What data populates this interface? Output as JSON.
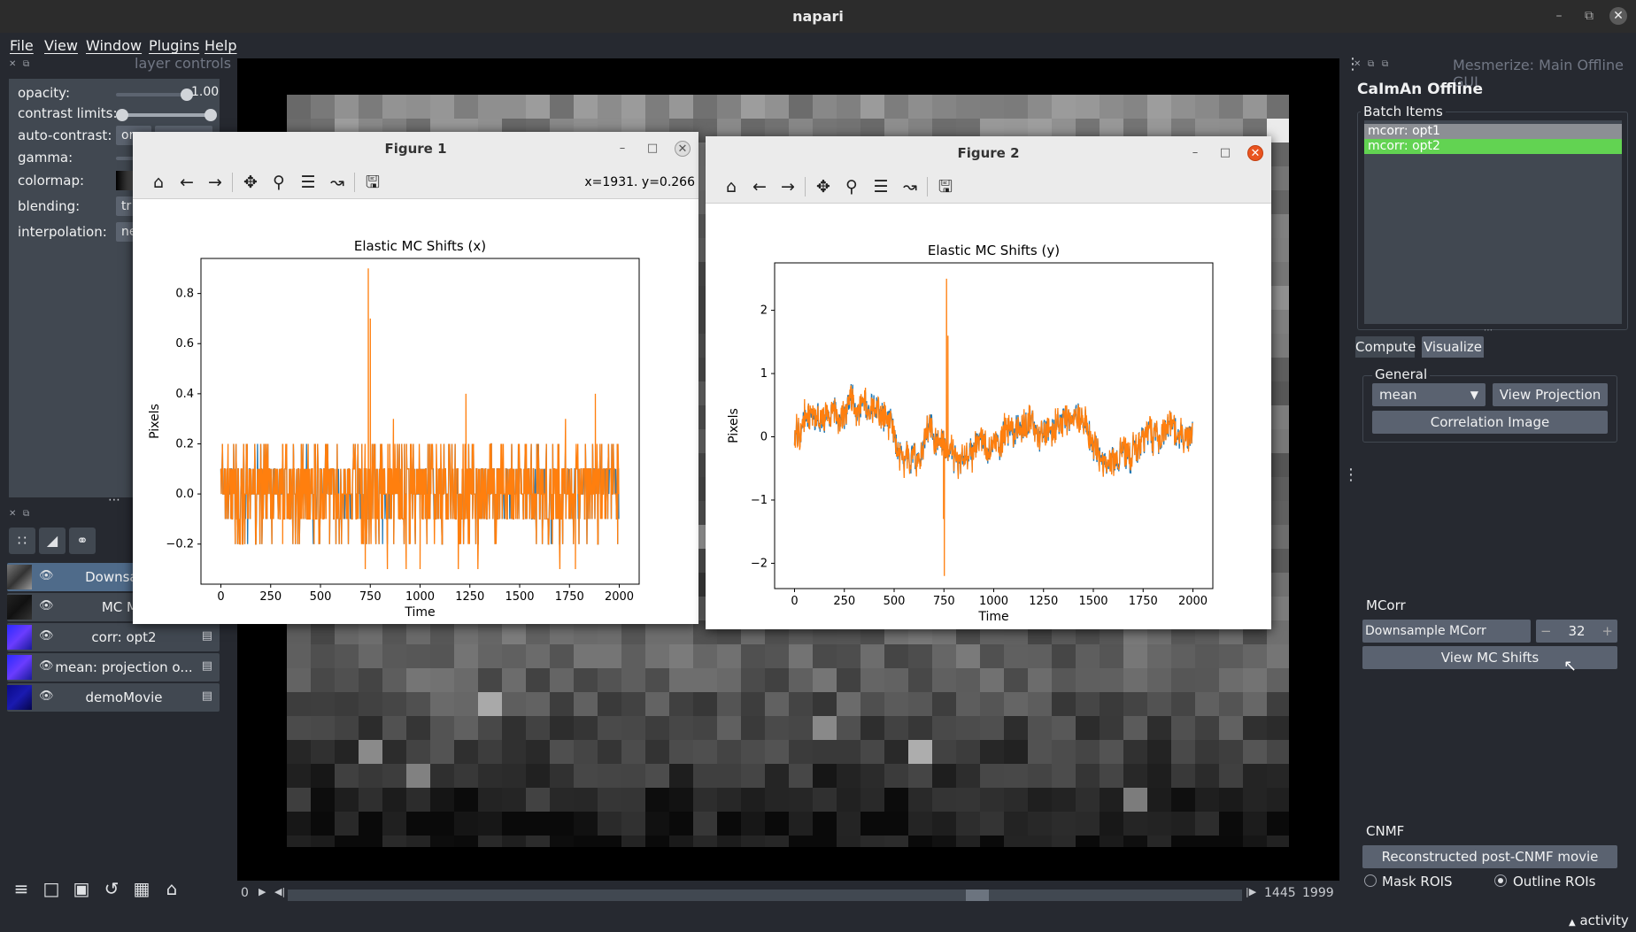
{
  "window": {
    "title": "napari"
  },
  "menu": [
    "File",
    "View",
    "Window",
    "Plugins",
    "Help"
  ],
  "layer_controls": {
    "title": "layer controls",
    "opacity_label": "opacity:",
    "opacity_value": "1.00",
    "opacity_fraction": 1.0,
    "contrast_label": "contrast limits:",
    "autocontrast_label": "auto-contrast:",
    "autocontrast_values": [
      "on",
      ""
    ],
    "gamma_label": "gamma:",
    "colormap_label": "colormap:",
    "blending_label": "blending:",
    "blending_value": "tr",
    "interpolation_label": "interpolation:",
    "interpolation_value": "ne"
  },
  "layers": [
    {
      "name": "Downsampl",
      "type": "",
      "selected": true,
      "thumb": "gray"
    },
    {
      "name": "MC Mo",
      "type": "",
      "selected": false,
      "thumb": "dark"
    },
    {
      "name": "corr: opt2",
      "type": "image",
      "selected": false,
      "thumb": "blue"
    },
    {
      "name": "mean: projection o...",
      "type": "image",
      "selected": false,
      "thumb": "blue"
    },
    {
      "name": "demoMovie",
      "type": "image",
      "selected": false,
      "thumb": "darkblue"
    }
  ],
  "dims": {
    "current": "0",
    "value": "1445",
    "max": "1999",
    "fraction": 0.7229
  },
  "right_panel": {
    "header": "Mesmerize: Main Offline GUI",
    "title": "CaImAn Offline",
    "batch_items_label": "Batch Items",
    "batch_items": [
      {
        "label": "mcorr: opt1",
        "color": "#8c8f94"
      },
      {
        "label": "mcorr: opt2",
        "color": "#62d352"
      }
    ],
    "tabs": [
      "Compute",
      "Visualize"
    ],
    "active_tab": "Visualize",
    "general_label": "General",
    "projection_select": "mean",
    "view_projection": "View Projection",
    "correlation_image": "Correlation Image",
    "mcorr_label": "MCorr",
    "downsample_label": "Downsample MCorr Movie:",
    "downsample_value": "32",
    "stepper_minus": "−",
    "stepper_plus": "+",
    "view_mc_shifts": "View MC Shifts",
    "cnmf_label": "CNMF",
    "reconstructed": "Reconstructed post-CNMF movie",
    "mask_rois": "Mask ROIS",
    "outline_rois": "Outline ROIs",
    "selected_roi_mode": "Outline ROIs"
  },
  "status": {
    "activity": "activity"
  },
  "figures": [
    {
      "window_title": "Figure 1",
      "coord_readout": "x=1931. y=0.266",
      "chart_data": {
        "type": "line",
        "title": "Elastic MC Shifts (x)",
        "xlabel": "Time",
        "ylabel": "Pixels",
        "xlim": [
          -100,
          2100
        ],
        "ylim": [
          -0.36,
          0.94
        ],
        "xticks": [
          0,
          250,
          500,
          750,
          1000,
          1250,
          1500,
          1750,
          2000
        ],
        "yticks": [
          -0.2,
          0.0,
          0.2,
          0.4,
          0.6,
          0.8
        ],
        "ytick_labels": [
          "−0.2",
          "0.0",
          "0.2",
          "0.4",
          "0.6",
          "0.8"
        ],
        "grid": false,
        "series": [
          {
            "color": "#1f77b4",
            "kind": "quantized",
            "spikes": []
          },
          {
            "color": "#ff7f0e",
            "kind": "quantized",
            "spikes": [
              [
                740,
                0.9
              ],
              [
                750,
                0.7
              ],
              [
                1000,
                -0.3
              ],
              [
                1230,
                0.4
              ],
              [
                1780,
                -0.3
              ],
              [
                1880,
                0.4
              ],
              [
                725,
                -0.3
              ],
              [
                310,
                -0.2
              ]
            ]
          }
        ],
        "x_range": [
          0,
          1999
        ]
      }
    },
    {
      "window_title": "Figure 2",
      "coord_readout": "",
      "chart_data": {
        "type": "line",
        "title": "Elastic MC Shifts (y)",
        "xlabel": "Time",
        "ylabel": "Pixels",
        "xlim": [
          -100,
          2100
        ],
        "ylim": [
          -2.4,
          2.75
        ],
        "xticks": [
          0,
          250,
          500,
          750,
          1000,
          1250,
          1500,
          1750,
          2000
        ],
        "yticks": [
          -2,
          -1,
          0,
          1,
          2
        ],
        "ytick_labels": [
          "−2",
          "−1",
          "0",
          "1",
          "2"
        ],
        "grid": false,
        "series": [
          {
            "color": "#1f77b4",
            "kind": "smooth",
            "spikes": []
          },
          {
            "color": "#ff7f0e",
            "kind": "smooth",
            "spikes": [
              [
                763,
                2.5
              ],
              [
                752,
                -2.2
              ],
              [
                748,
                -1.3
              ],
              [
                770,
                1.6
              ]
            ]
          }
        ],
        "x_range": [
          0,
          1999
        ]
      }
    }
  ]
}
